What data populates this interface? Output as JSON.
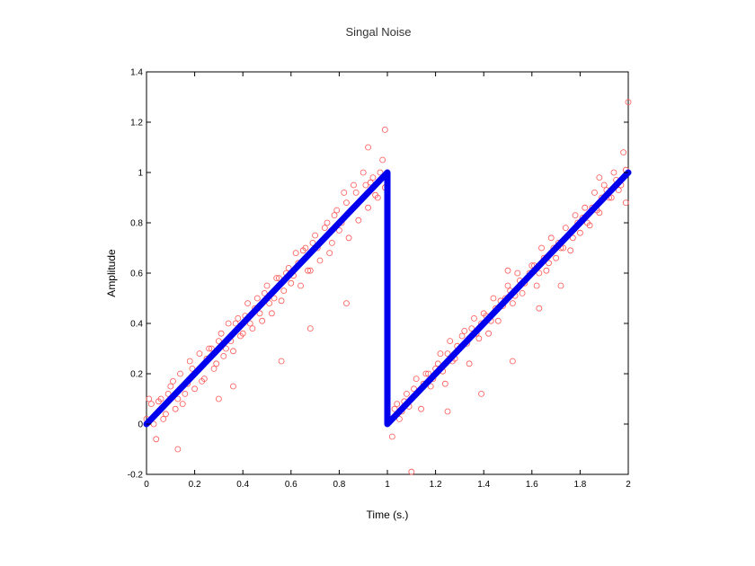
{
  "chart_data": {
    "type": "scatter",
    "title": "Singal Noise",
    "xlabel": "Time (s.)",
    "ylabel": "Amplitude",
    "xlim": [
      0,
      2
    ],
    "ylim": [
      -0.2,
      1.4
    ],
    "xticks": [
      "0",
      "0.2",
      "0.4",
      "0.6",
      "0.8",
      "1",
      "1.2",
      "1.4",
      "1.6",
      "1.8",
      "2"
    ],
    "yticks": [
      "-0.2",
      "0",
      "0.2",
      "0.4",
      "0.6",
      "0.8",
      "1",
      "1.2",
      "1.4"
    ],
    "grid": false,
    "legend": "none",
    "series": [
      {
        "kind": "line",
        "color": "#0000ee",
        "x": [
          0,
          1,
          1,
          2
        ],
        "y": [
          0,
          1,
          0,
          1
        ]
      },
      {
        "kind": "scatter",
        "marker": "open-circle",
        "color": "#ff5555",
        "x": [
          0.0,
          0.02,
          0.04,
          0.06,
          0.08,
          0.1,
          0.12,
          0.14,
          0.16,
          0.18,
          0.2,
          0.22,
          0.24,
          0.26,
          0.28,
          0.3,
          0.32,
          0.34,
          0.36,
          0.38,
          0.4,
          0.42,
          0.44,
          0.46,
          0.48,
          0.5,
          0.52,
          0.54,
          0.56,
          0.58,
          0.6,
          0.62,
          0.64,
          0.66,
          0.68,
          0.7,
          0.72,
          0.74,
          0.76,
          0.78,
          0.8,
          0.82,
          0.84,
          0.86,
          0.88,
          0.9,
          0.92,
          0.94,
          0.96,
          0.98,
          1.0,
          1.02,
          1.04,
          1.06,
          1.08,
          1.1,
          1.12,
          1.14,
          1.16,
          1.18,
          1.2,
          1.22,
          1.24,
          1.26,
          1.28,
          1.3,
          1.32,
          1.34,
          1.36,
          1.38,
          1.4,
          1.42,
          1.44,
          1.46,
          1.48,
          1.5,
          1.52,
          1.54,
          1.56,
          1.58,
          1.6,
          1.62,
          1.64,
          1.66,
          1.68,
          1.7,
          1.72,
          1.74,
          1.76,
          1.78,
          1.8,
          1.82,
          1.84,
          1.86,
          1.88,
          1.9,
          1.92,
          1.94,
          1.96,
          1.98,
          2.0,
          0.01,
          0.03,
          0.05,
          0.07,
          0.09,
          0.11,
          0.13,
          0.15,
          0.17,
          0.19,
          0.21,
          0.23,
          0.25,
          0.27,
          0.29,
          0.31,
          0.33,
          0.35,
          0.37,
          0.39,
          0.41,
          0.43,
          0.45,
          0.47,
          0.49,
          0.51,
          0.53,
          0.55,
          0.57,
          0.59,
          0.61,
          0.63,
          0.65,
          0.67,
          0.69,
          0.71,
          0.73,
          0.75,
          0.77,
          0.79,
          0.81,
          0.83,
          0.85,
          0.87,
          0.89,
          0.91,
          0.93,
          0.95,
          0.97,
          0.99,
          1.01,
          1.03,
          1.05,
          1.07,
          1.09,
          1.11,
          1.13,
          1.15,
          1.17,
          1.19,
          1.21,
          1.23,
          1.25,
          1.27,
          1.29,
          1.31,
          1.33,
          1.35,
          1.37,
          1.39,
          1.41,
          1.43,
          1.45,
          1.47,
          1.49,
          1.51,
          1.53,
          1.55,
          1.57,
          1.59,
          1.61,
          1.63,
          1.65,
          1.67,
          1.69,
          1.71,
          1.73,
          1.75,
          1.77,
          1.79,
          1.81,
          1.83,
          1.85,
          1.87,
          1.89,
          1.91,
          1.93,
          1.95,
          1.97,
          1.99,
          0.13,
          0.3,
          0.36,
          0.5,
          0.56,
          0.68,
          0.83,
          0.92,
          0.99,
          1.1,
          1.25,
          1.39,
          1.5,
          1.52,
          1.63,
          1.72,
          1.88,
          1.99
        ],
        "y": [
          0.02,
          0.08,
          -0.06,
          0.1,
          0.04,
          0.15,
          0.06,
          0.2,
          0.12,
          0.25,
          0.14,
          0.28,
          0.18,
          0.3,
          0.22,
          0.33,
          0.27,
          0.4,
          0.29,
          0.42,
          0.36,
          0.48,
          0.38,
          0.5,
          0.41,
          0.55,
          0.44,
          0.58,
          0.49,
          0.6,
          0.56,
          0.68,
          0.55,
          0.7,
          0.61,
          0.75,
          0.65,
          0.78,
          0.68,
          0.83,
          0.77,
          0.92,
          0.74,
          0.95,
          0.81,
          1.0,
          0.86,
          0.98,
          0.9,
          1.05,
          0.97,
          -0.05,
          0.08,
          0.05,
          0.12,
          0.1,
          0.18,
          0.06,
          0.2,
          0.15,
          0.22,
          0.28,
          0.16,
          0.33,
          0.26,
          0.3,
          0.37,
          0.24,
          0.42,
          0.34,
          0.44,
          0.36,
          0.5,
          0.41,
          0.47,
          0.55,
          0.48,
          0.6,
          0.52,
          0.58,
          0.63,
          0.55,
          0.7,
          0.61,
          0.74,
          0.66,
          0.7,
          0.78,
          0.69,
          0.83,
          0.76,
          0.86,
          0.79,
          0.92,
          0.84,
          0.95,
          0.9,
          1.0,
          0.93,
          1.08,
          1.28,
          0.1,
          0.0,
          0.09,
          0.02,
          0.12,
          0.17,
          0.1,
          0.08,
          0.16,
          0.22,
          0.21,
          0.17,
          0.26,
          0.3,
          0.24,
          0.36,
          0.3,
          0.33,
          0.4,
          0.35,
          0.43,
          0.4,
          0.46,
          0.44,
          0.52,
          0.48,
          0.5,
          0.58,
          0.53,
          0.62,
          0.59,
          0.64,
          0.69,
          0.61,
          0.72,
          0.7,
          0.73,
          0.8,
          0.72,
          0.85,
          0.8,
          0.88,
          0.85,
          0.92,
          0.89,
          0.95,
          0.96,
          0.91,
          1.0,
          0.94,
          0.02,
          0.06,
          0.02,
          0.09,
          0.07,
          0.14,
          0.13,
          0.16,
          0.2,
          0.18,
          0.24,
          0.21,
          0.28,
          0.25,
          0.31,
          0.35,
          0.32,
          0.38,
          0.36,
          0.4,
          0.43,
          0.41,
          0.46,
          0.49,
          0.5,
          0.53,
          0.51,
          0.57,
          0.56,
          0.6,
          0.63,
          0.6,
          0.66,
          0.64,
          0.7,
          0.72,
          0.7,
          0.75,
          0.74,
          0.8,
          0.82,
          0.8,
          0.86,
          0.85,
          0.9,
          0.93,
          0.9,
          0.97,
          0.95,
          1.01,
          -0.1,
          0.1,
          0.15,
          0.5,
          0.25,
          0.38,
          0.48,
          1.1,
          1.17,
          -0.19,
          0.05,
          0.12,
          0.61,
          0.25,
          0.46,
          0.55,
          0.98,
          0.88
        ]
      }
    ]
  }
}
